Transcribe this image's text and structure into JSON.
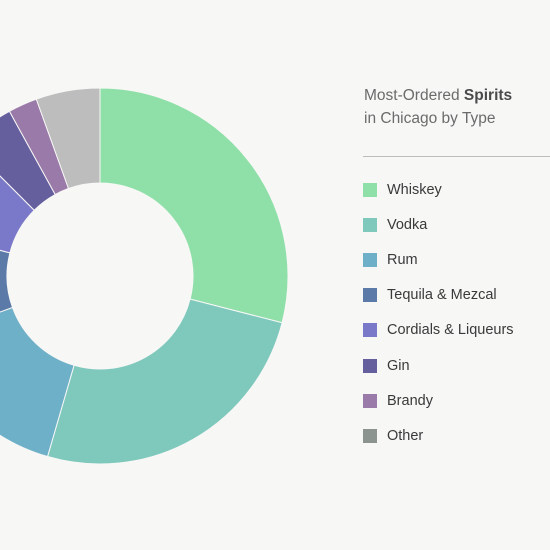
{
  "chart_data": {
    "type": "pie",
    "style": "donut",
    "title_prefix": "Most-Ordered ",
    "title_emphasis": "Spirits",
    "title_suffix": "in Chicago by Type",
    "slices": [
      {
        "label": "Whiskey",
        "value": 29.0,
        "color": "#8fe0a8"
      },
      {
        "label": "Vodka",
        "value": 25.5,
        "color": "#7ec8bc"
      },
      {
        "label": "Rum",
        "value": 15.0,
        "color": "#6eb0c8"
      },
      {
        "label": "Tequila & Mezcal",
        "value": 9.5,
        "color": "#5b7aa8"
      },
      {
        "label": "Cordials & Liqueurs",
        "value": 8.5,
        "color": "#7a78c8"
      },
      {
        "label": "Gin",
        "value": 4.5,
        "color": "#665f9e"
      },
      {
        "label": "Brandy",
        "value": 2.5,
        "color": "#9a7aa8"
      },
      {
        "label": "Other",
        "value": 5.5,
        "color": "#bdbdbd"
      }
    ],
    "legend_other_color": "#8c9490",
    "legend_position": "right"
  }
}
